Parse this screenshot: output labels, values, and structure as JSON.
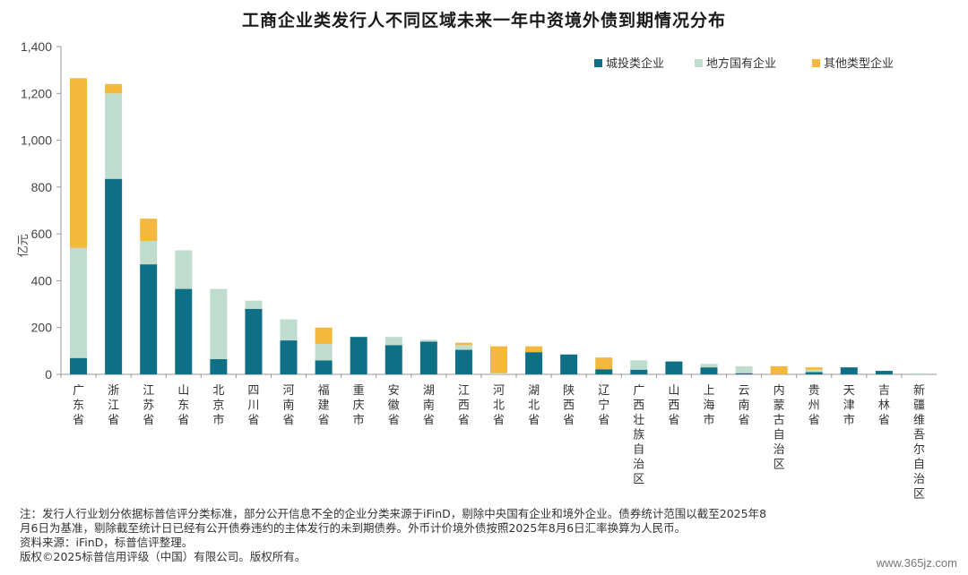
{
  "title": "工商企业类发行人不同区域未来一年中资境外债到期情况分布",
  "notes": {
    "line1": "注：发行人行业划分依据标普信评分类标准，部分公开信息不全的企业分类来源于iFinD，剔除中央国有企业和境外企业。债券统计范围以截至2025年8",
    "line2": "月6日为基准，剔除截至统计日已经有公开债券违约的主体发行的未到期债券。外币计价境外债按照2025年8月6日汇率换算为人民币。",
    "source": "资料来源：iFinD，标普信评整理。",
    "copyright": "版权©2025标普信用评级（中国）有限公司。版权所有。"
  },
  "watermark": "www.365jz.com",
  "chart_data": {
    "type": "bar",
    "stacked": true,
    "ylabel": "亿元",
    "ylim": [
      0,
      1400
    ],
    "yticks": [
      0,
      200,
      400,
      600,
      800,
      "1,000",
      "1,200",
      "1,400"
    ],
    "legend_position": "top-right",
    "grid": false,
    "categories": [
      "广东省",
      "浙江省",
      "江苏省",
      "山东省",
      "北京市",
      "四川省",
      "河南省",
      "福建省",
      "重庆市",
      "安徽省",
      "湖南省",
      "江西省",
      "河北省",
      "湖北省",
      "陕西省",
      "辽宁省",
      "广西壮族自治区",
      "山西省",
      "上海市",
      "云南省",
      "内蒙古自治区",
      "贵州省",
      "天津市",
      "吉林省",
      "新疆维吾尔自治区"
    ],
    "series": [
      {
        "name": "城投类企业",
        "color": "#0e6f85",
        "values": [
          70,
          835,
          470,
          365,
          65,
          280,
          145,
          60,
          160,
          125,
          140,
          105,
          0,
          95,
          85,
          22,
          20,
          55,
          30,
          5,
          0,
          10,
          30,
          15,
          0
        ]
      },
      {
        "name": "地方国有企业",
        "color": "#bfdccf",
        "values": [
          470,
          365,
          100,
          165,
          300,
          35,
          90,
          70,
          0,
          35,
          8,
          20,
          5,
          0,
          0,
          0,
          40,
          0,
          15,
          30,
          0,
          10,
          0,
          0,
          5
        ]
      },
      {
        "name": "其他类型企业",
        "color": "#f3b93e",
        "values": [
          725,
          40,
          95,
          0,
          0,
          0,
          0,
          70,
          0,
          0,
          0,
          10,
          115,
          25,
          0,
          50,
          0,
          0,
          0,
          0,
          35,
          10,
          0,
          0,
          0
        ]
      }
    ]
  }
}
